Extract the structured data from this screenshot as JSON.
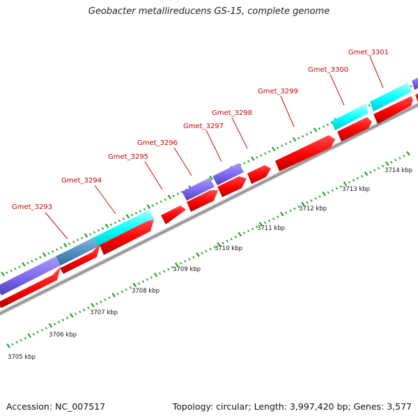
{
  "title": "Geobacter metallireducens GS-15, complete genome",
  "accession": "Accession: NC_007517",
  "summary": "Topology: circular; Length: 3,997,420 bp; Genes: 3,577",
  "colors": {
    "background": "#ffffff",
    "cds": "#ff0000",
    "cds_dark": "#b00000",
    "cog_cyan": "#00ffff",
    "cog_purple": "#7b68ee",
    "cog_steel": "#4f8fbf",
    "backbone": "#9a9a9a",
    "ticks": "#00a000",
    "gene_label": "#cc0000",
    "text": "#111111"
  },
  "scale": {
    "unit": "kbp",
    "labels": [
      "3705 kbp",
      "3706 kbp",
      "3707 kbp",
      "3708 kbp",
      "3709 kbp",
      "3710 kbp",
      "3711 kbp",
      "3712 kbp",
      "3713 kbp",
      "3714 kbp"
    ]
  },
  "genes": [
    {
      "name": "Gmet_3293"
    },
    {
      "name": "Gmet_3294"
    },
    {
      "name": "Gmet_3295"
    },
    {
      "name": "Gmet_3296"
    },
    {
      "name": "Gmet_3297"
    },
    {
      "name": "Gmet_3298"
    },
    {
      "name": "Gmet_3299"
    },
    {
      "name": "Gmet_3300"
    },
    {
      "name": "Gmet_3301"
    }
  ]
}
